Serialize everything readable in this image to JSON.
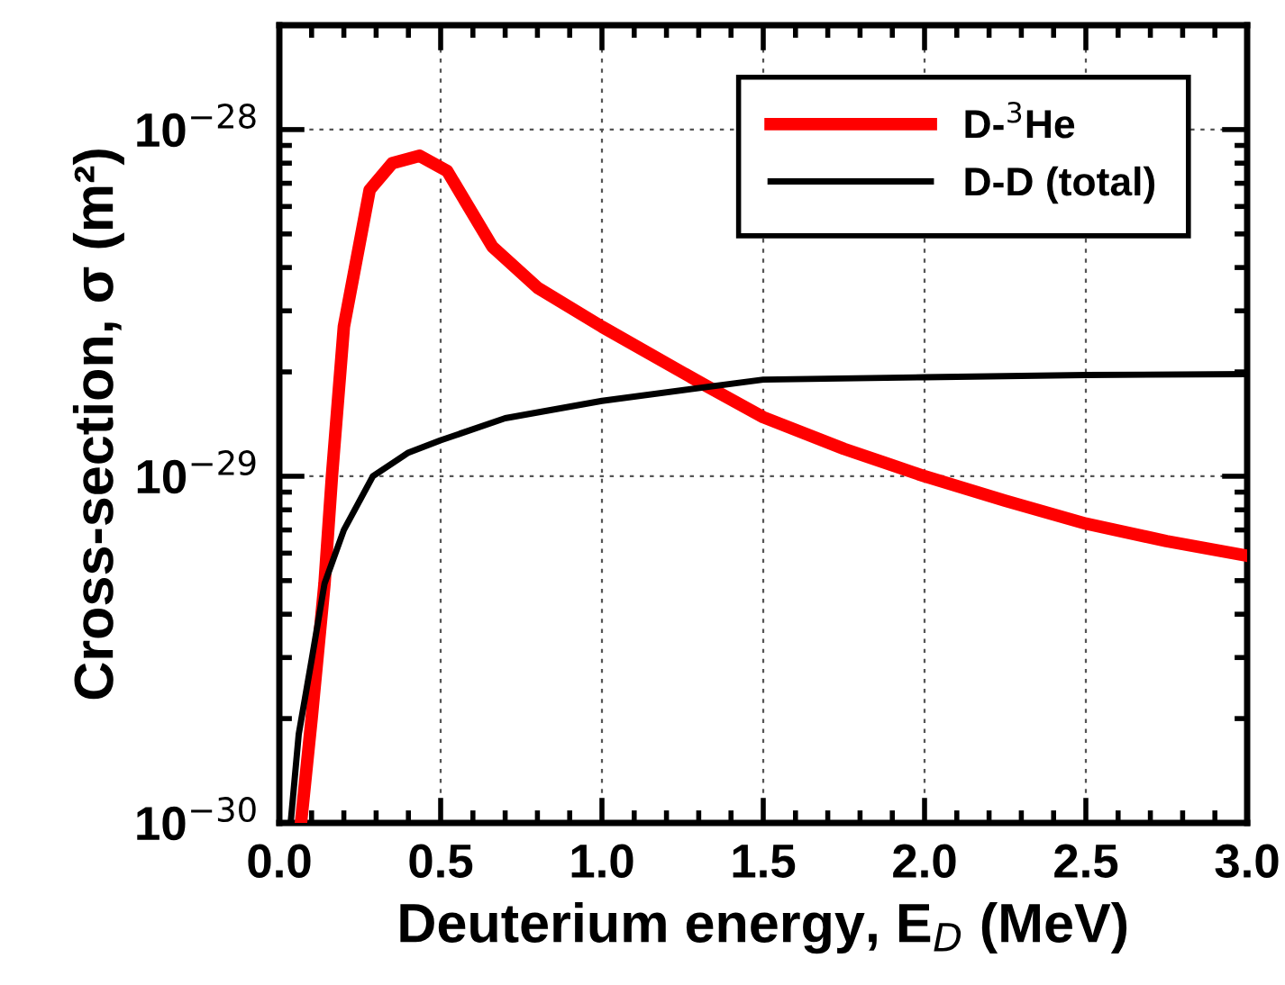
{
  "chart_data": {
    "type": "line",
    "xlabel": "Deuterium energy, E$_{D}$ (MeV)",
    "ylabel": "Cross-section, σ (m²)",
    "log": "y",
    "xlim": [
      0,
      3
    ],
    "ylim": [
      1e-30,
      2e-28
    ],
    "xticks": [
      {
        "value": 0,
        "label": "0.0"
      },
      {
        "value": 0.5,
        "label": "0.5"
      },
      {
        "value": 1,
        "label": "1.0"
      },
      {
        "value": 1.5,
        "label": "1.5"
      },
      {
        "value": 2,
        "label": "2.0"
      },
      {
        "value": 2.5,
        "label": "2.5"
      },
      {
        "value": 3,
        "label": "3.0"
      }
    ],
    "yticks": [
      {
        "value": 1e-30,
        "label": "10$^{−30}$"
      },
      {
        "value": 1e-29,
        "label": "10$^{−29}$"
      },
      {
        "value": 1e-28,
        "label": "10$^{−28}$"
      }
    ],
    "grid": true,
    "legend": "top right",
    "marker": "none",
    "line_style": "solid",
    "series": [
      {
        "name": "D-$^{3}$He",
        "color": "#ff0000",
        "x": [
          0.067,
          0.1,
          0.14,
          0.163,
          0.2,
          0.28,
          0.35,
          0.435,
          0.52,
          0.66,
          0.8,
          1.0,
          1.32,
          1.5,
          1.75,
          2.0,
          2.25,
          2.5,
          2.75,
          3.0
        ],
        "values": [
          1e-30,
          2e-30,
          4.9e-30,
          1e-29,
          2.7e-29,
          6.7e-29,
          8e-29,
          8.4e-29,
          7.6e-29,
          4.6e-29,
          3.5e-29,
          2.7e-29,
          1.83e-29,
          1.48e-29,
          1.2e-29,
          1e-29,
          8.5e-30,
          7.3e-30,
          6.5e-30,
          5.9e-30
        ]
      },
      {
        "name": "D-D (total)",
        "color": "#000000",
        "x": [
          0.035,
          0.06,
          0.1,
          0.14,
          0.2,
          0.29,
          0.4,
          0.5,
          0.7,
          1.0,
          1.5,
          2.0,
          2.5,
          3.0
        ],
        "values": [
          1e-30,
          1.8e-30,
          2.95e-30,
          4.9e-30,
          7e-30,
          1e-29,
          1.17e-29,
          1.27e-29,
          1.47e-29,
          1.65e-29,
          1.9e-29,
          1.93e-29,
          1.96e-29,
          1.97e-29
        ]
      }
    ]
  }
}
